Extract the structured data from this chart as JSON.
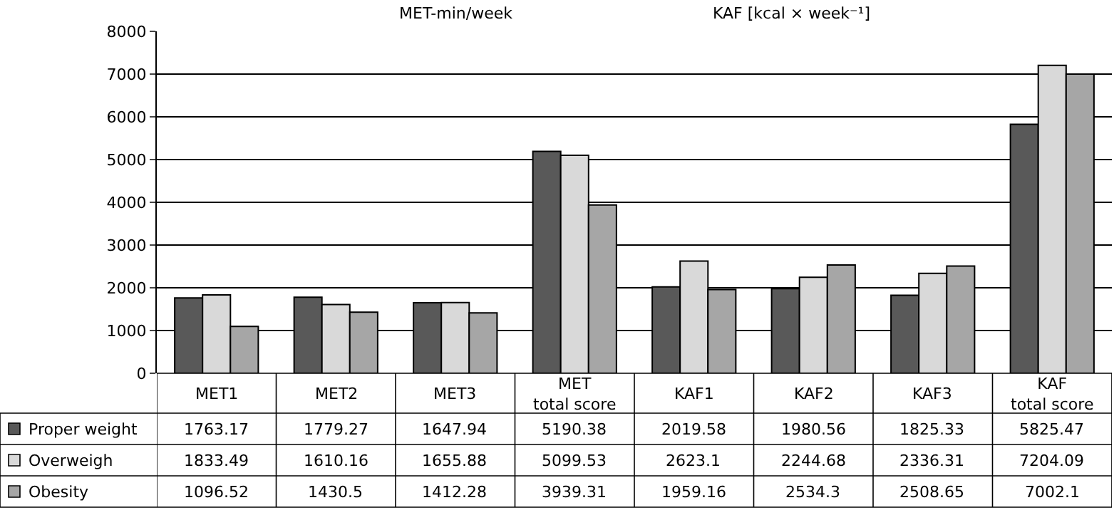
{
  "chart_data": {
    "type": "bar",
    "categories": [
      "MET1",
      "MET2",
      "MET3",
      "MET total score",
      "KAF1",
      "KAF2",
      "KAF3",
      "KAF total score"
    ],
    "series": [
      {
        "name": "Proper weight",
        "color": "#595959",
        "values": [
          1763.17,
          1779.27,
          1647.94,
          5190.38,
          2019.58,
          1980.56,
          1825.33,
          5825.47
        ]
      },
      {
        "name": "Overweigh",
        "color": "#d9d9d9",
        "values": [
          1833.49,
          1610.16,
          1655.88,
          5099.53,
          2623.1,
          2244.68,
          2336.31,
          7204.09
        ]
      },
      {
        "name": "Obesity",
        "color": "#a6a6a6",
        "values": [
          1096.52,
          1430.5,
          1412.28,
          3939.31,
          1959.16,
          2534.3,
          2508.65,
          7002.1
        ]
      }
    ],
    "annotations": [
      "MET-min/week",
      "KAF [kcal × week⁻¹]"
    ],
    "ylim": [
      0,
      8000
    ],
    "yticks": [
      0,
      1000,
      2000,
      3000,
      4000,
      5000,
      6000,
      7000,
      8000
    ],
    "grid": "y",
    "legend": "bottom",
    "data_labels": true
  }
}
